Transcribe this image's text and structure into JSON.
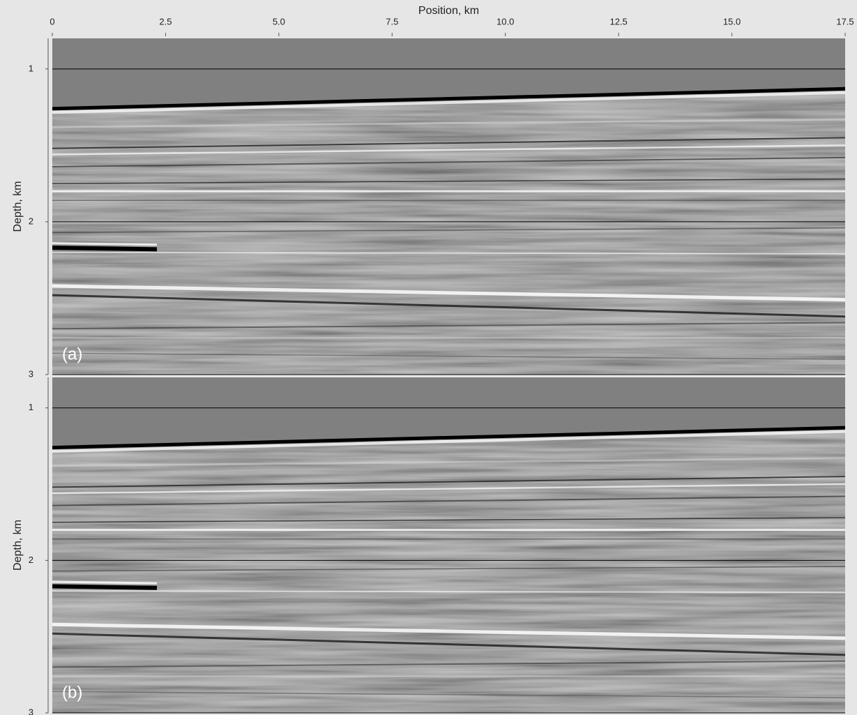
{
  "chart_data": [
    {
      "type": "image",
      "x_label": "Position, km",
      "y_label": "Depth, km",
      "panel_label": "(a)",
      "xlim": [
        0,
        17.5
      ],
      "xticks": [
        0,
        2.5,
        {
          "value": 5,
          "label": "5.0"
        },
        7.5,
        {
          "value": 10,
          "label": "10.0"
        },
        12.5,
        {
          "value": 15,
          "label": "15.0"
        },
        17.5
      ],
      "ylim": [
        0.8,
        3
      ],
      "y_inverted": true,
      "yticks": [
        1,
        2,
        3
      ],
      "grid": true
    },
    {
      "type": "image",
      "y_label": "Depth, km",
      "panel_label": "(b)",
      "xlim": [
        0,
        17.5
      ],
      "ylim": [
        0.8,
        3
      ],
      "y_inverted": true,
      "yticks": [
        1,
        2,
        3
      ],
      "grid": true
    }
  ]
}
